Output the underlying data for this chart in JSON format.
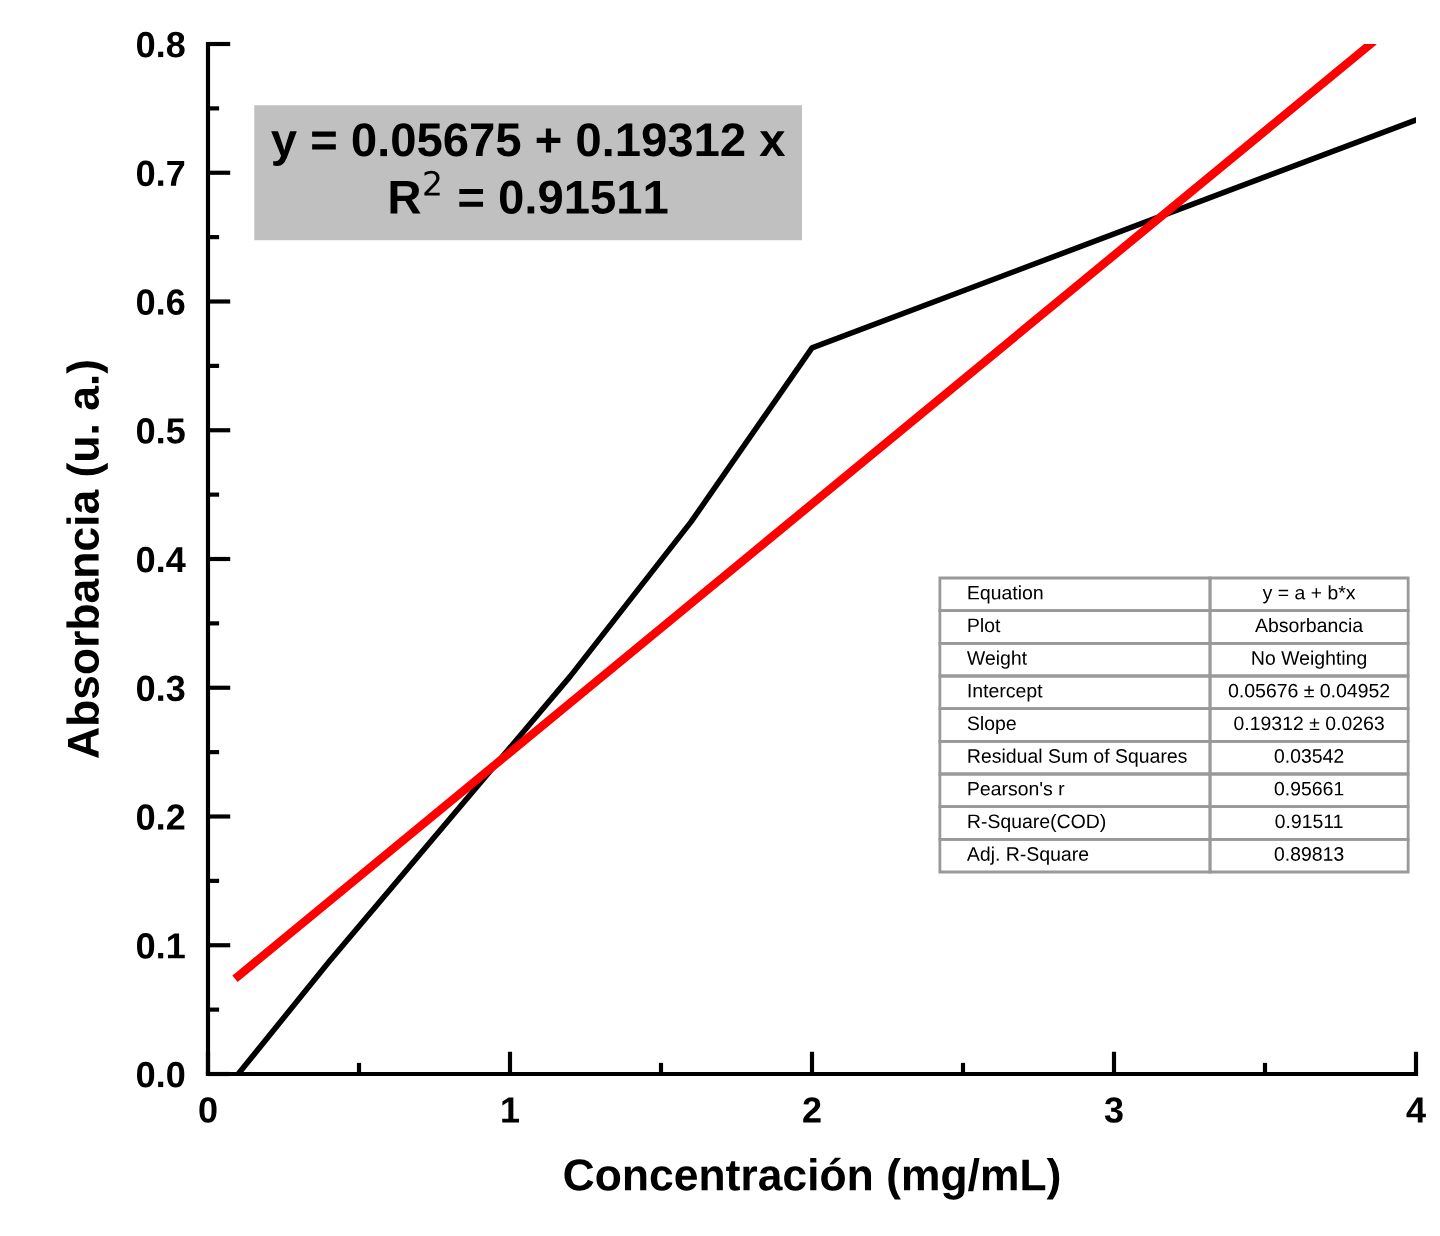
{
  "chart_data": {
    "type": "line",
    "xlabel": "Concentración (mg/mL)",
    "ylabel": "Absorbancia (u. a.)",
    "series": [
      {
        "color": "#000000",
        "x": [
          0.1,
          0.4,
          1.2,
          1.6,
          2.0,
          4.0
        ],
        "values": [
          0.0,
          0.087,
          0.309,
          0.429,
          0.564,
          0.741
        ]
      },
      {
        "color": "#ff0000",
        "x": [
          0.1,
          3.85
        ],
        "values": [
          0.076,
          0.8
        ]
      }
    ],
    "xlim": [
      0,
      4
    ],
    "xticks": [
      0,
      1,
      2,
      3,
      4
    ],
    "ylim": [
      0,
      0.8
    ],
    "yticks": [
      {
        "value": 0,
        "label": "0.0"
      },
      {
        "value": 0.1,
        "label": "0.1"
      },
      {
        "value": 0.2,
        "label": "0.2"
      },
      {
        "value": 0.3,
        "label": "0.3"
      },
      {
        "value": 0.4,
        "label": "0.4"
      },
      {
        "value": 0.5,
        "label": "0.5"
      },
      {
        "value": 0.6,
        "label": "0.6"
      },
      {
        "value": 0.7,
        "label": "0.7"
      },
      {
        "value": 0.8,
        "label": "0.8"
      }
    ],
    "grid": false,
    "marker": "none",
    "line_style": "solid",
    "annotations": [
      "y = 0.05675 + 0.19312 x",
      "R$^{2}$ = 0.91511",
      "Equation",
      "y = a + b*x",
      "Plot",
      "Absorbancia",
      "Weight",
      "No Weighting",
      "Intercept",
      "0.05676 ± 0.04952",
      "Slope",
      "0.19312 ± 0.0263",
      "Residual Sum of Squares",
      "0.03542",
      "Pearson's r",
      "0.95661",
      "R-Square(COD)",
      "0.91511",
      "Adj. R-Square",
      "0.89813"
    ]
  }
}
